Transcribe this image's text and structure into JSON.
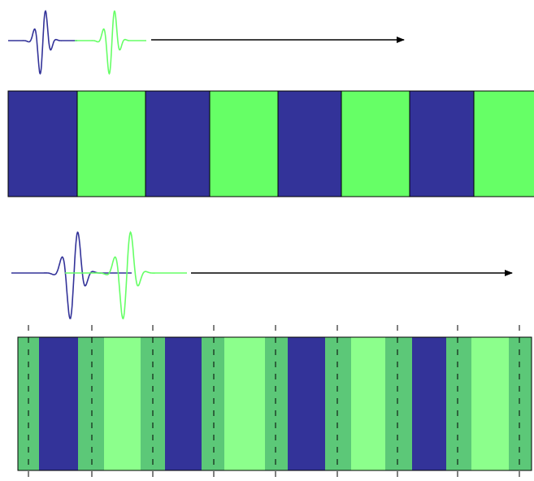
{
  "colors": {
    "blue": "#333399",
    "green": "#66ff66",
    "mid_green": "#5cc878",
    "light_green": "#8cff8c",
    "outline": "#000000",
    "arrow": "#000000"
  },
  "top_bar": {
    "layers": [
      "blue",
      "green",
      "blue",
      "green",
      "blue",
      "green",
      "blue",
      "green"
    ]
  },
  "bottom_bar": {
    "layers": [
      "mid_green",
      "blue",
      "mid_green",
      "light_green",
      "mid_green",
      "blue",
      "mid_green",
      "light_green",
      "mid_green",
      "blue",
      "mid_green",
      "light_green",
      "mid_green",
      "blue",
      "mid_green",
      "light_green",
      "mid_green"
    ]
  },
  "top_waves": [
    {
      "color": "blue"
    },
    {
      "color": "green"
    }
  ],
  "bottom_waves": [
    {
      "color": "blue"
    },
    {
      "color": "green"
    }
  ]
}
